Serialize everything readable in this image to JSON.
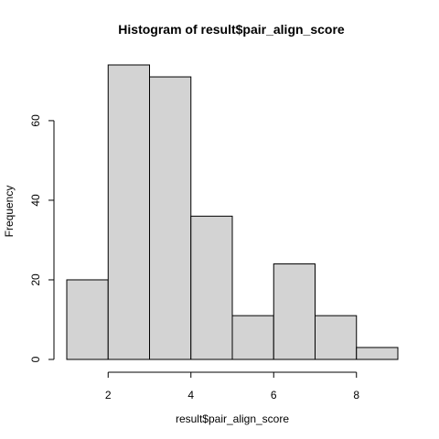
{
  "chart_data": {
    "type": "bar",
    "title": "Histogram of result$pair_align_score",
    "xlabel": "result$pair_align_score",
    "ylabel": "Frequency",
    "bins": [
      {
        "x0": 1,
        "x1": 2,
        "count": 20
      },
      {
        "x0": 2,
        "x1": 3,
        "count": 74
      },
      {
        "x0": 3,
        "x1": 4,
        "count": 71
      },
      {
        "x0": 4,
        "x1": 5,
        "count": 36
      },
      {
        "x0": 5,
        "x1": 6,
        "count": 11
      },
      {
        "x0": 6,
        "x1": 7,
        "count": 24
      },
      {
        "x0": 7,
        "x1": 8,
        "count": 11
      },
      {
        "x0": 8,
        "x1": 9,
        "count": 3
      }
    ],
    "xticks": [
      2,
      4,
      6,
      8
    ],
    "yticks": [
      0,
      20,
      40,
      60
    ],
    "xlim": [
      1,
      9
    ],
    "ylim": [
      0,
      74
    ],
    "bar_color": "#d3d3d3",
    "grid": false,
    "legend": "none"
  }
}
